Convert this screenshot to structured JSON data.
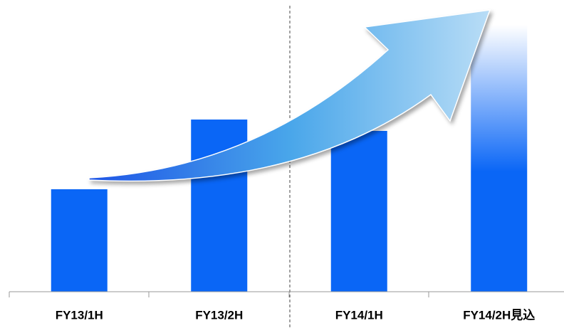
{
  "chart_data": {
    "type": "bar",
    "categories": [
      "FY13/1H",
      "FY13/2H",
      "FY14/1H",
      "FY14/2H見込"
    ],
    "values": [
      144,
      242,
      226,
      375
    ],
    "color": "#0a66f6",
    "ylim": [
      0,
      400
    ]
  }
}
